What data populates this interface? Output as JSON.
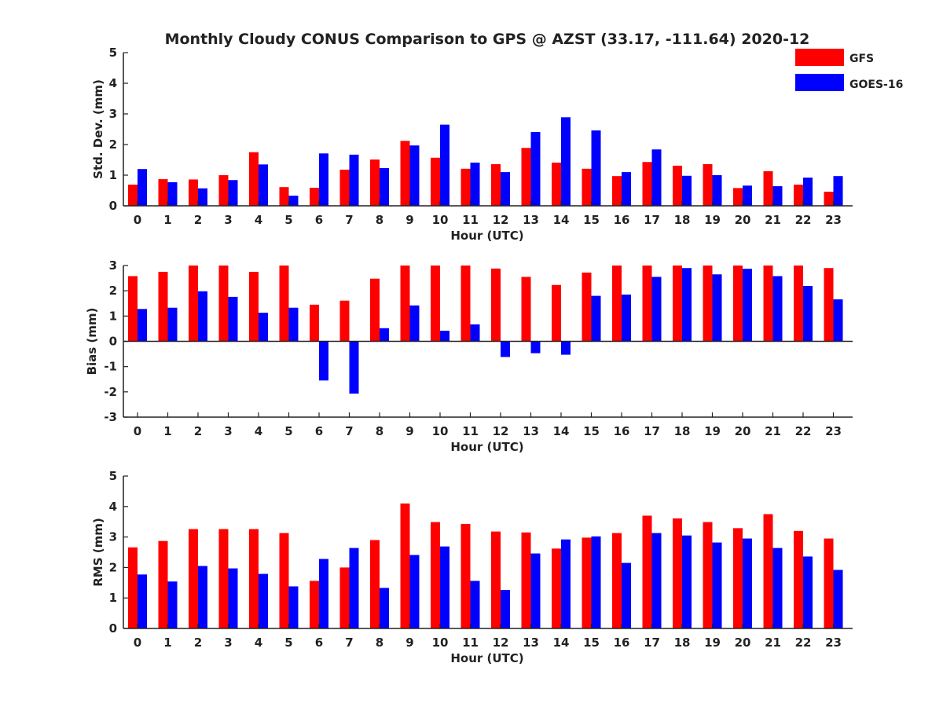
{
  "title": "Monthly Cloudy CONUS Comparison to GPS @ AZST (33.17, -111.64) 2020-12",
  "legend": [
    {
      "name": "GFS",
      "color": "#ff0000"
    },
    {
      "name": "GOES-16",
      "color": "#0000ff"
    }
  ],
  "chart_data": [
    {
      "type": "bar",
      "ylabel": "Std. Dev. (mm)",
      "xlabel": "Hour (UTC)",
      "ylim": [
        0,
        5
      ],
      "yticks": [
        "0",
        "1",
        "2",
        "3",
        "4",
        "5"
      ],
      "categories": [
        "0",
        "1",
        "2",
        "3",
        "4",
        "5",
        "6",
        "7",
        "8",
        "9",
        "10",
        "11",
        "12",
        "13",
        "14",
        "15",
        "16",
        "17",
        "18",
        "19",
        "20",
        "21",
        "22",
        "23"
      ],
      "series": [
        {
          "name": "GFS",
          "color": "#ff0000",
          "values": [
            0.69,
            0.87,
            0.86,
            1.0,
            1.75,
            0.61,
            0.59,
            1.18,
            1.51,
            2.12,
            1.57,
            1.21,
            1.36,
            1.89,
            1.41,
            1.21,
            0.97,
            1.43,
            1.31,
            1.36,
            0.58,
            1.13,
            0.69,
            0.46
          ]
        },
        {
          "name": "GOES-16",
          "color": "#0000ff",
          "values": [
            1.2,
            0.77,
            0.57,
            0.84,
            1.35,
            0.33,
            1.71,
            1.67,
            1.23,
            1.97,
            2.65,
            1.41,
            1.1,
            2.41,
            2.89,
            2.46,
            1.1,
            1.84,
            0.98,
            1.0,
            0.66,
            0.64,
            0.92,
            0.97
          ]
        }
      ]
    },
    {
      "type": "bar",
      "ylabel": "Bias (mm)",
      "xlabel": "Hour (UTC)",
      "ylim": [
        -3,
        3
      ],
      "yticks": [
        "-3",
        "-2",
        "-1",
        "0",
        "1",
        "2",
        "3"
      ],
      "categories": [
        "0",
        "1",
        "2",
        "3",
        "4",
        "5",
        "6",
        "7",
        "8",
        "9",
        "10",
        "11",
        "12",
        "13",
        "14",
        "15",
        "16",
        "17",
        "18",
        "19",
        "20",
        "21",
        "22",
        "23"
      ],
      "series": [
        {
          "name": "GFS",
          "color": "#ff0000",
          "values": [
            2.58,
            2.75,
            3.0,
            3.0,
            2.75,
            3.0,
            1.45,
            1.61,
            2.48,
            3.0,
            3.0,
            3.0,
            2.88,
            2.55,
            2.23,
            2.72,
            3.0,
            3.0,
            3.0,
            3.0,
            3.0,
            3.0,
            3.0,
            2.9
          ]
        },
        {
          "name": "GOES-16",
          "color": "#0000ff",
          "values": [
            1.28,
            1.33,
            1.98,
            1.76,
            1.13,
            1.33,
            -1.55,
            -2.07,
            0.52,
            1.42,
            0.42,
            0.67,
            -0.62,
            -0.47,
            -0.53,
            1.8,
            1.85,
            2.55,
            2.9,
            2.65,
            2.87,
            2.58,
            2.19,
            1.66
          ]
        }
      ]
    },
    {
      "type": "bar",
      "ylabel": "RMS (mm)",
      "xlabel": "Hour (UTC)",
      "ylim": [
        0,
        5
      ],
      "yticks": [
        "0",
        "1",
        "2",
        "3",
        "4",
        "5"
      ],
      "categories": [
        "0",
        "1",
        "2",
        "3",
        "4",
        "5",
        "6",
        "7",
        "8",
        "9",
        "10",
        "11",
        "12",
        "13",
        "14",
        "15",
        "16",
        "17",
        "18",
        "19",
        "20",
        "21",
        "22",
        "23"
      ],
      "series": [
        {
          "name": "GFS",
          "color": "#ff0000",
          "values": [
            2.66,
            2.87,
            3.26,
            3.26,
            3.26,
            3.13,
            1.56,
            2.0,
            2.9,
            4.1,
            3.49,
            3.43,
            3.18,
            3.15,
            2.62,
            2.98,
            3.13,
            3.7,
            3.61,
            3.49,
            3.29,
            3.75,
            3.2,
            2.95
          ]
        },
        {
          "name": "GOES-16",
          "color": "#0000ff",
          "values": [
            1.77,
            1.54,
            2.05,
            1.97,
            1.79,
            1.38,
            2.28,
            2.64,
            1.33,
            2.41,
            2.69,
            1.56,
            1.26,
            2.46,
            2.92,
            3.02,
            2.15,
            3.13,
            3.05,
            2.82,
            2.95,
            2.64,
            2.36,
            1.92
          ]
        }
      ]
    }
  ]
}
